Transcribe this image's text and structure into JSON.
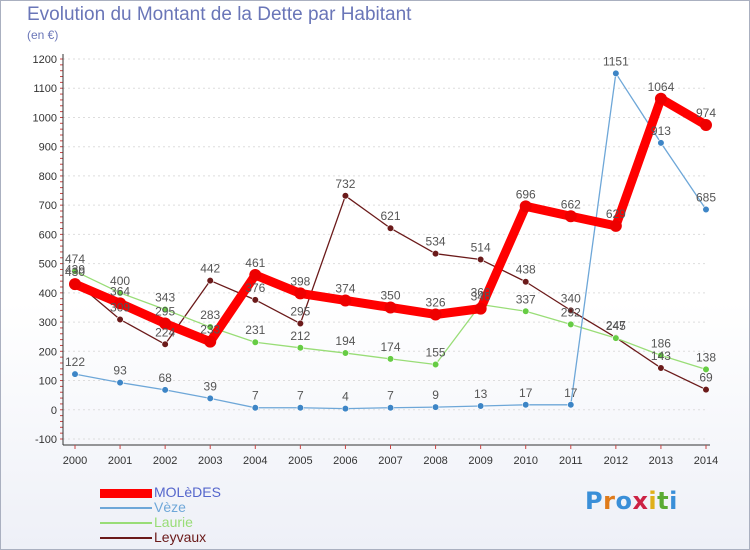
{
  "title": "Evolution du Montant de la Dette par Habitant",
  "subtitle": "(en €)",
  "logo_text": "Proxiti",
  "colors": {
    "title": "#6a76b8",
    "axis": "#333333",
    "grid": "#cc4444",
    "value_label": "#555555"
  },
  "chart_data": {
    "type": "line",
    "title": "Evolution du Montant de la Dette par Habitant",
    "subtitle": "(en €)",
    "xlabel": "",
    "ylabel": "",
    "x": [
      "2000",
      "2001",
      "2002",
      "2003",
      "2004",
      "2005",
      "2006",
      "2007",
      "2008",
      "2009",
      "2010",
      "2011",
      "2012",
      "2013",
      "2014"
    ],
    "ylim": [
      -100,
      1200
    ],
    "yticks": [
      -100,
      0,
      100,
      200,
      300,
      400,
      500,
      600,
      700,
      800,
      900,
      1000,
      1100,
      1200
    ],
    "legend_position": "bottom-left",
    "series": [
      {
        "name": "Leyvaux",
        "color": "#6b1a1a",
        "marker": "#6b1a1a",
        "width": 1.3,
        "values": [
          439,
          309,
          224,
          442,
          376,
          295,
          732,
          621,
          534,
          514,
          438,
          340,
          247,
          143,
          69
        ]
      },
      {
        "name": "Laurie",
        "color": "#99dd77",
        "marker": "#66cc44",
        "width": 1.3,
        "values": [
          474,
          400,
          343,
          283,
          231,
          212,
          194,
          174,
          155,
          360,
          337,
          292,
          245,
          186,
          138
        ]
      },
      {
        "name": "Vèze",
        "color": "#6ea7d8",
        "marker": "#3d85c6",
        "width": 1.3,
        "values": [
          122,
          93,
          68,
          39,
          7,
          7,
          4,
          7,
          9,
          13,
          17,
          17,
          1151,
          913,
          685
        ]
      },
      {
        "name": "MOLèDES",
        "color": "#ff0000",
        "marker": "#ee0000",
        "width": 9,
        "values": [
          430,
          364,
          295,
          233,
          461,
          398,
          374,
          350,
          326,
          346,
          696,
          662,
          629,
          1064,
          974
        ]
      }
    ]
  }
}
